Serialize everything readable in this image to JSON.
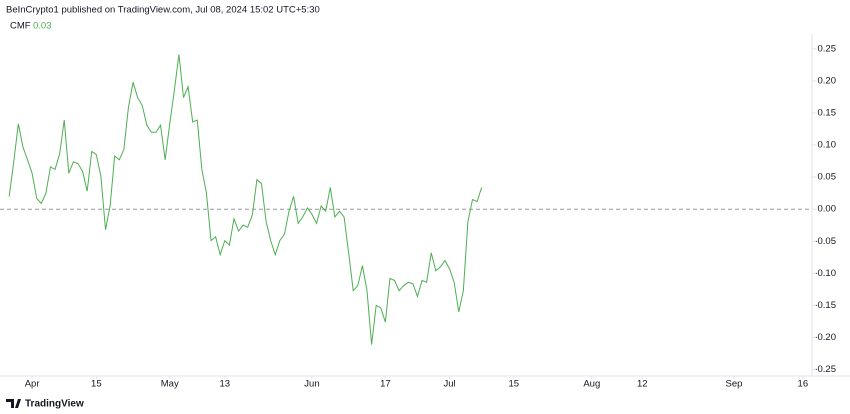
{
  "header": {
    "title": "BeInCrypto1 published on TradingView.com, Jul 08, 2024 15:02 UTC+5:30"
  },
  "footer": {
    "brand": "TradingView"
  },
  "chart_data": {
    "type": "line",
    "series": [
      {
        "name": "CMF",
        "color": "#4caf50",
        "values": [
          0.02,
          0.074,
          0.133,
          0.097,
          0.077,
          0.056,
          0.017,
          0.009,
          0.025,
          0.066,
          0.062,
          0.086,
          0.139,
          0.056,
          0.074,
          0.071,
          0.059,
          0.028,
          0.09,
          0.085,
          0.051,
          -0.032,
          0.005,
          0.083,
          0.077,
          0.093,
          0.159,
          0.198,
          0.174,
          0.162,
          0.131,
          0.12,
          0.12,
          0.131,
          0.077,
          0.133,
          0.185,
          0.241,
          0.174,
          0.191,
          0.136,
          0.139,
          0.062,
          0.025,
          -0.049,
          -0.043,
          -0.071,
          -0.049,
          -0.056,
          -0.015,
          -0.034,
          -0.025,
          -0.028,
          -0.009,
          0.046,
          0.04,
          -0.019,
          -0.049,
          -0.071,
          -0.049,
          -0.039,
          -0.003,
          0.02,
          -0.022,
          -0.012,
          0.002,
          -0.008,
          -0.022,
          0.005,
          -0.003,
          0.034,
          -0.012,
          -0.003,
          -0.012,
          -0.068,
          -0.127,
          -0.119,
          -0.088,
          -0.127,
          -0.211,
          -0.15,
          -0.154,
          -0.176,
          -0.108,
          -0.111,
          -0.127,
          -0.119,
          -0.114,
          -0.116,
          -0.136,
          -0.111,
          -0.114,
          -0.068,
          -0.096,
          -0.09,
          -0.08,
          -0.093,
          -0.114,
          -0.16,
          -0.127,
          -0.019,
          0.015,
          0.012,
          0.034
        ]
      }
    ],
    "legend_value": 0.03,
    "x": [
      "Mar 27",
      "Mar 28",
      "Mar 29",
      "Mar 30",
      "Mar 31",
      "Apr 1",
      "Apr 2",
      "Apr 3",
      "Apr 4",
      "Apr 5",
      "Apr 6",
      "Apr 7",
      "Apr 8",
      "Apr 9",
      "Apr 10",
      "Apr 11",
      "Apr 12",
      "Apr 13",
      "Apr 14",
      "Apr 15",
      "Apr 16",
      "Apr 17",
      "Apr 18",
      "Apr 19",
      "Apr 20",
      "Apr 21",
      "Apr 22",
      "Apr 23",
      "Apr 24",
      "Apr 25",
      "Apr 26",
      "Apr 27",
      "Apr 28",
      "Apr 29",
      "Apr 30",
      "May 1",
      "May 2",
      "May 3",
      "May 4",
      "May 5",
      "May 6",
      "May 7",
      "May 8",
      "May 9",
      "May 10",
      "May 11",
      "May 12",
      "May 13",
      "May 14",
      "May 15",
      "May 16",
      "May 17",
      "May 18",
      "May 19",
      "May 20",
      "May 21",
      "May 22",
      "May 23",
      "May 24",
      "May 25",
      "May 26",
      "May 27",
      "May 28",
      "May 29",
      "May 30",
      "May 31",
      "Jun 1",
      "Jun 2",
      "Jun 3",
      "Jun 4",
      "Jun 5",
      "Jun 6",
      "Jun 7",
      "Jun 8",
      "Jun 9",
      "Jun 10",
      "Jun 11",
      "Jun 12",
      "Jun 13",
      "Jun 14",
      "Jun 15",
      "Jun 16",
      "Jun 17",
      "Jun 18",
      "Jun 19",
      "Jun 20",
      "Jun 21",
      "Jun 22",
      "Jun 23",
      "Jun 24",
      "Jun 25",
      "Jun 26",
      "Jun 27",
      "Jun 28",
      "Jun 29",
      "Jun 30",
      "Jul 1",
      "Jul 2",
      "Jul 3",
      "Jul 4",
      "Jul 5",
      "Jul 6",
      "Jul 7",
      "Jul 8"
    ],
    "xlim": [
      "Mar 25",
      "Sep 18"
    ],
    "xticks": [
      {
        "value": "Apr 1",
        "label": "Apr"
      },
      {
        "value": "Apr 15",
        "label": "15"
      },
      {
        "value": "May 1",
        "label": "May"
      },
      {
        "value": "May 13",
        "label": "13"
      },
      {
        "value": "Jun 1",
        "label": "Jun"
      },
      {
        "value": "Jun 17",
        "label": "17"
      },
      {
        "value": "Jul 1",
        "label": "Jul"
      },
      {
        "value": "Jul 15",
        "label": "15"
      },
      {
        "value": "Aug 1",
        "label": "Aug"
      },
      {
        "value": "Aug 12",
        "label": "12"
      },
      {
        "value": "Sep 1",
        "label": "Sep"
      },
      {
        "value": "Sep 16",
        "label": "16"
      }
    ],
    "ylim": [
      -0.26,
      0.27
    ],
    "yticks": [
      0.25,
      {
        "value": 0.2,
        "label": "0.20"
      },
      0.15,
      {
        "value": 0.1,
        "label": "0.10"
      },
      0.05,
      {
        "value": 0,
        "label": "0.00"
      },
      -0.05,
      {
        "value": -0.1,
        "label": "-0.10"
      },
      -0.15,
      {
        "value": -0.2,
        "label": "-0.20"
      },
      -0.25
    ],
    "hline": 0
  }
}
